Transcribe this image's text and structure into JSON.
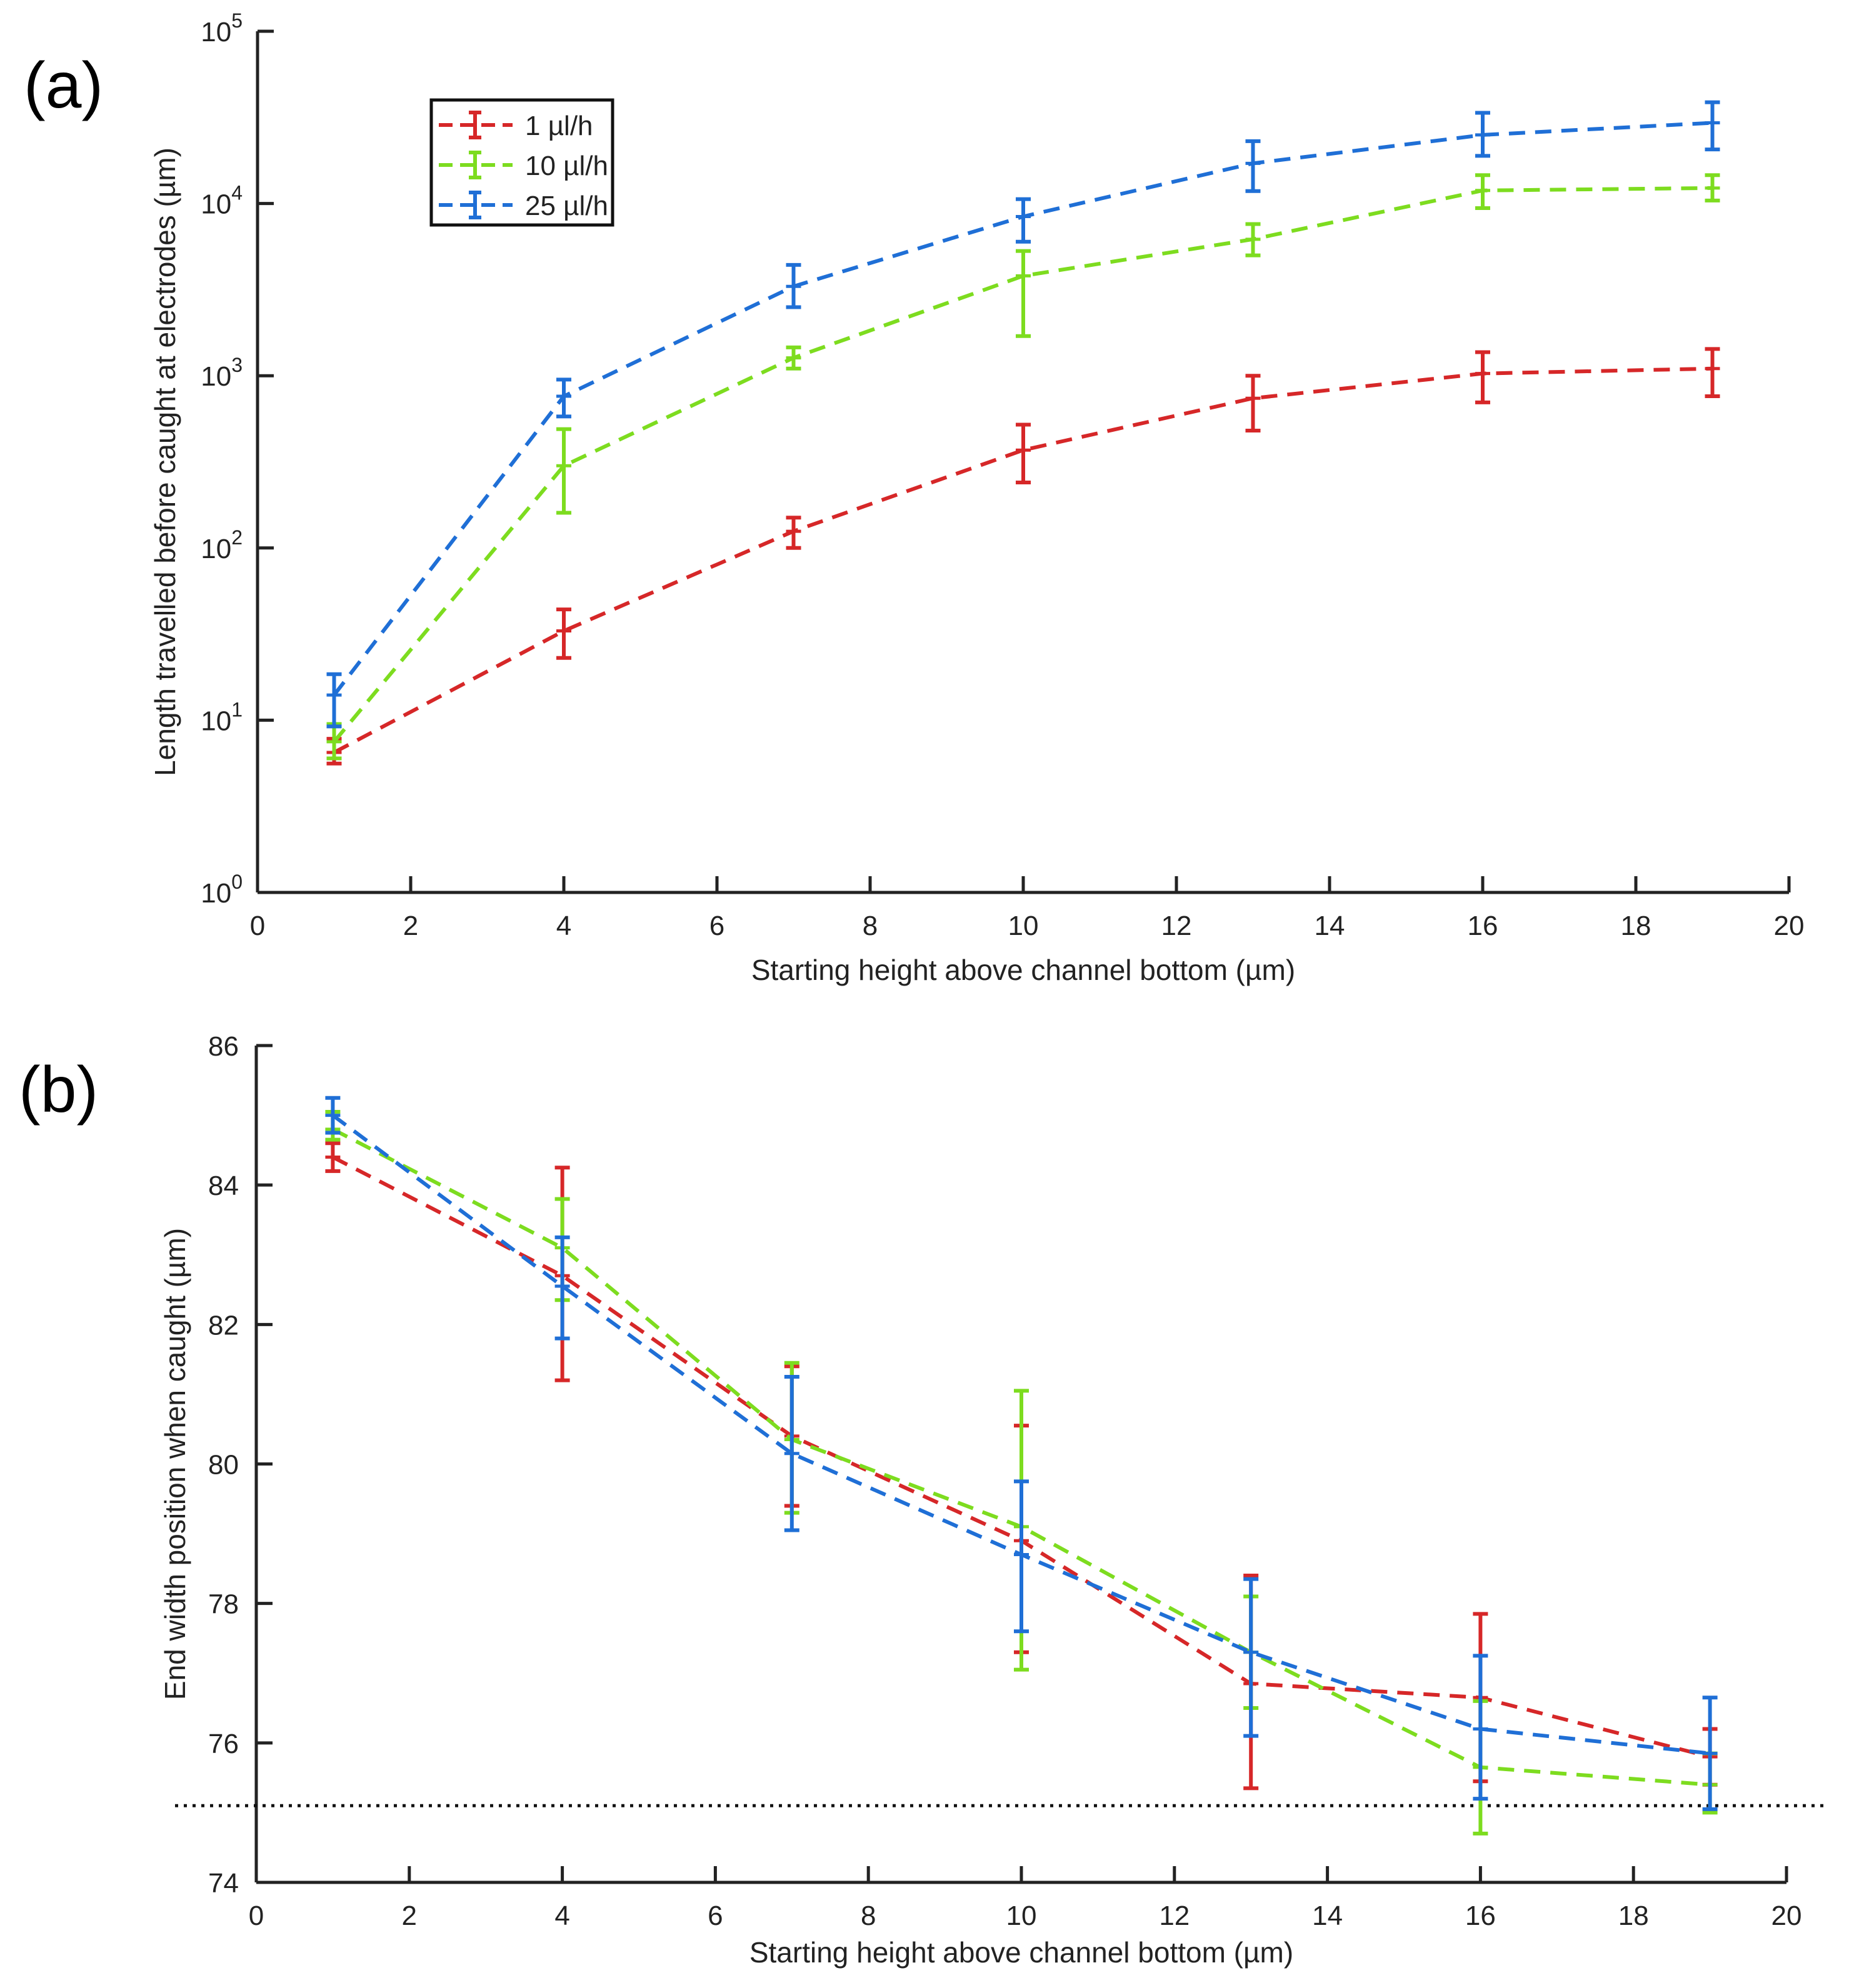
{
  "panels": [
    {
      "label": "(a)"
    },
    {
      "label": "(b)"
    }
  ],
  "colors": {
    "red": "#d62728",
    "green": "#7ddc1f",
    "blue": "#1f6fd6"
  },
  "chart_data": [
    {
      "type": "line",
      "scale_y": "log",
      "title": "",
      "xlabel": "Starting height above channel bottom (µm)",
      "ylabel": "Length travelled before caught at electrodes (µm)",
      "xlim": [
        0,
        20
      ],
      "ylim": [
        1,
        100000
      ],
      "x_ticks": [
        "0",
        "2",
        "4",
        "6",
        "8",
        "10",
        "12",
        "14",
        "16",
        "18",
        "20"
      ],
      "y_ticks": [
        {
          "base": "10",
          "exp": "0"
        },
        {
          "base": "10",
          "exp": "1"
        },
        {
          "base": "10",
          "exp": "2"
        },
        {
          "base": "10",
          "exp": "3"
        },
        {
          "base": "10",
          "exp": "4"
        },
        {
          "base": "10",
          "exp": "5"
        }
      ],
      "legend_position": "top-left",
      "x": [
        1,
        4,
        7,
        10,
        13,
        16,
        19
      ],
      "series": [
        {
          "name": "1 µl/h",
          "color": "#d62728",
          "values": [
            6.5,
            33,
            125,
            370,
            740,
            1030,
            1100
          ],
          "err_low": [
            5.6,
            23,
            100,
            240,
            480,
            700,
            760
          ],
          "err_high": [
            7.8,
            44,
            150,
            520,
            1000,
            1370,
            1430
          ]
        },
        {
          "name": "10 µl/h",
          "color": "#7ddc1f",
          "values": [
            7.5,
            300,
            1270,
            3800,
            6200,
            11900,
            12300
          ],
          "err_low": [
            6.0,
            160,
            1100,
            1700,
            5000,
            9400,
            10400
          ],
          "err_high": [
            9.5,
            490,
            1460,
            5300,
            7600,
            14600,
            14600
          ]
        },
        {
          "name": "25 µl/h",
          "color": "#1f6fd6",
          "values": [
            14,
            760,
            3300,
            8400,
            17100,
            25000,
            29400
          ],
          "err_low": [
            9.2,
            580,
            2500,
            6000,
            11800,
            18900,
            20600
          ],
          "err_high": [
            18.5,
            950,
            4400,
            10600,
            23000,
            33600,
            38700
          ]
        }
      ]
    },
    {
      "type": "line",
      "title": "",
      "xlabel": "Starting height above channel bottom (µm)",
      "ylabel": "End width position when caught (µm)",
      "xlim": [
        0,
        20
      ],
      "ylim": [
        74,
        86
      ],
      "x_ticks": [
        "0",
        "2",
        "4",
        "6",
        "8",
        "10",
        "12",
        "14",
        "16",
        "18",
        "20"
      ],
      "y_ticks": [
        "74",
        "76",
        "78",
        "80",
        "82",
        "84",
        "86"
      ],
      "reference_line_y": 75.1,
      "x": [
        1,
        4,
        7,
        10,
        13,
        16,
        19
      ],
      "series": [
        {
          "name": "1 µl/h",
          "color": "#d62728",
          "values": [
            84.4,
            82.7,
            80.4,
            78.9,
            76.85,
            76.65,
            75.8
          ],
          "err_low": [
            84.2,
            81.2,
            79.4,
            77.3,
            75.35,
            75.45,
            75.4
          ],
          "err_high": [
            84.6,
            84.25,
            81.4,
            80.55,
            78.4,
            77.85,
            76.2
          ]
        },
        {
          "name": "10 µl/h",
          "color": "#7ddc1f",
          "values": [
            84.8,
            83.1,
            80.35,
            79.1,
            77.3,
            75.65,
            75.4
          ],
          "err_low": [
            84.65,
            82.35,
            79.3,
            77.05,
            76.5,
            74.7,
            75.0
          ],
          "err_high": [
            85.05,
            83.8,
            81.45,
            81.05,
            78.1,
            76.6,
            75.85
          ]
        },
        {
          "name": "25 µl/h",
          "color": "#1f6fd6",
          "values": [
            85.0,
            82.55,
            80.15,
            78.7,
            77.3,
            76.2,
            75.85
          ],
          "err_low": [
            84.75,
            81.8,
            79.05,
            77.6,
            76.1,
            75.2,
            75.05
          ],
          "err_high": [
            85.25,
            83.25,
            81.25,
            79.75,
            78.35,
            77.25,
            76.65
          ]
        }
      ]
    }
  ]
}
